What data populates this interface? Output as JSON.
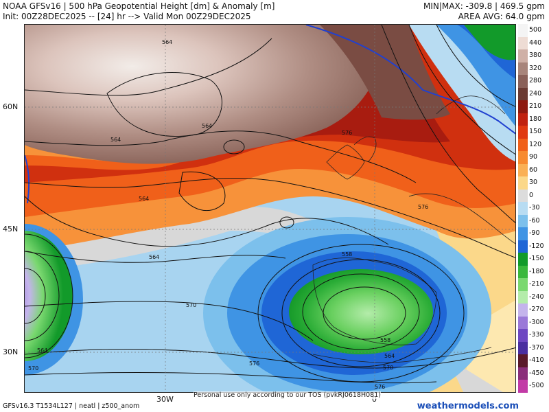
{
  "header": {
    "title": "NOAA GFSv16 | 500 hPa Geopotential Height [dm] & Anomaly [m]",
    "init": "Init: 00Z28DEC2025 -- [24] hr --> Valid Mon 00Z29DEC2025",
    "minmax": "MIN|MAX: -309.8 | 469.5 gpm",
    "area_avg": "AREA AVG: 64.0 gpm"
  },
  "axes": {
    "lat_labels": [
      "60N",
      "45N",
      "30N"
    ],
    "lon_labels": [
      "30W",
      "0"
    ]
  },
  "contour_labels": [
    "564",
    "564",
    "564",
    "564",
    "564",
    "564",
    "576",
    "576",
    "570",
    "570",
    "558",
    "558",
    "564",
    "570",
    "576",
    "576",
    "564",
    "570"
  ],
  "colorbar": {
    "labels": [
      "500",
      "440",
      "380",
      "320",
      "280",
      "240",
      "210",
      "180",
      "150",
      "120",
      "90",
      "60",
      "30",
      "0",
      "-30",
      "-60",
      "-90",
      "-120",
      "-150",
      "-180",
      "-210",
      "-240",
      "-270",
      "-300",
      "-330",
      "-370",
      "-410",
      "-450",
      "-500"
    ],
    "colors": [
      "#f4f4f4",
      "#eedcd4",
      "#cfb0a6",
      "#a8857b",
      "#8a6159",
      "#6b3b33",
      "#8e1a10",
      "#c02210",
      "#e03a12",
      "#f0601a",
      "#f78a30",
      "#fab055",
      "#fbd88a",
      "#dcdcdc",
      "#b8dcf2",
      "#7cc0ec",
      "#3f94e4",
      "#1f66d6",
      "#129a2a",
      "#3ab83c",
      "#7ad870",
      "#b4ecaa",
      "#c4b4ec",
      "#9a78d8",
      "#6e48c2",
      "#4a2fa0",
      "#5a1a2a",
      "#8a2e7a",
      "#c23aa6"
    ]
  },
  "disclaimer": "Personal use only according to our TOS (pvkRJ0618H081)",
  "footer": {
    "left": "GFSv16.3 T1534L127 | neatl | z500_anom",
    "right": "weathermodels.com"
  }
}
